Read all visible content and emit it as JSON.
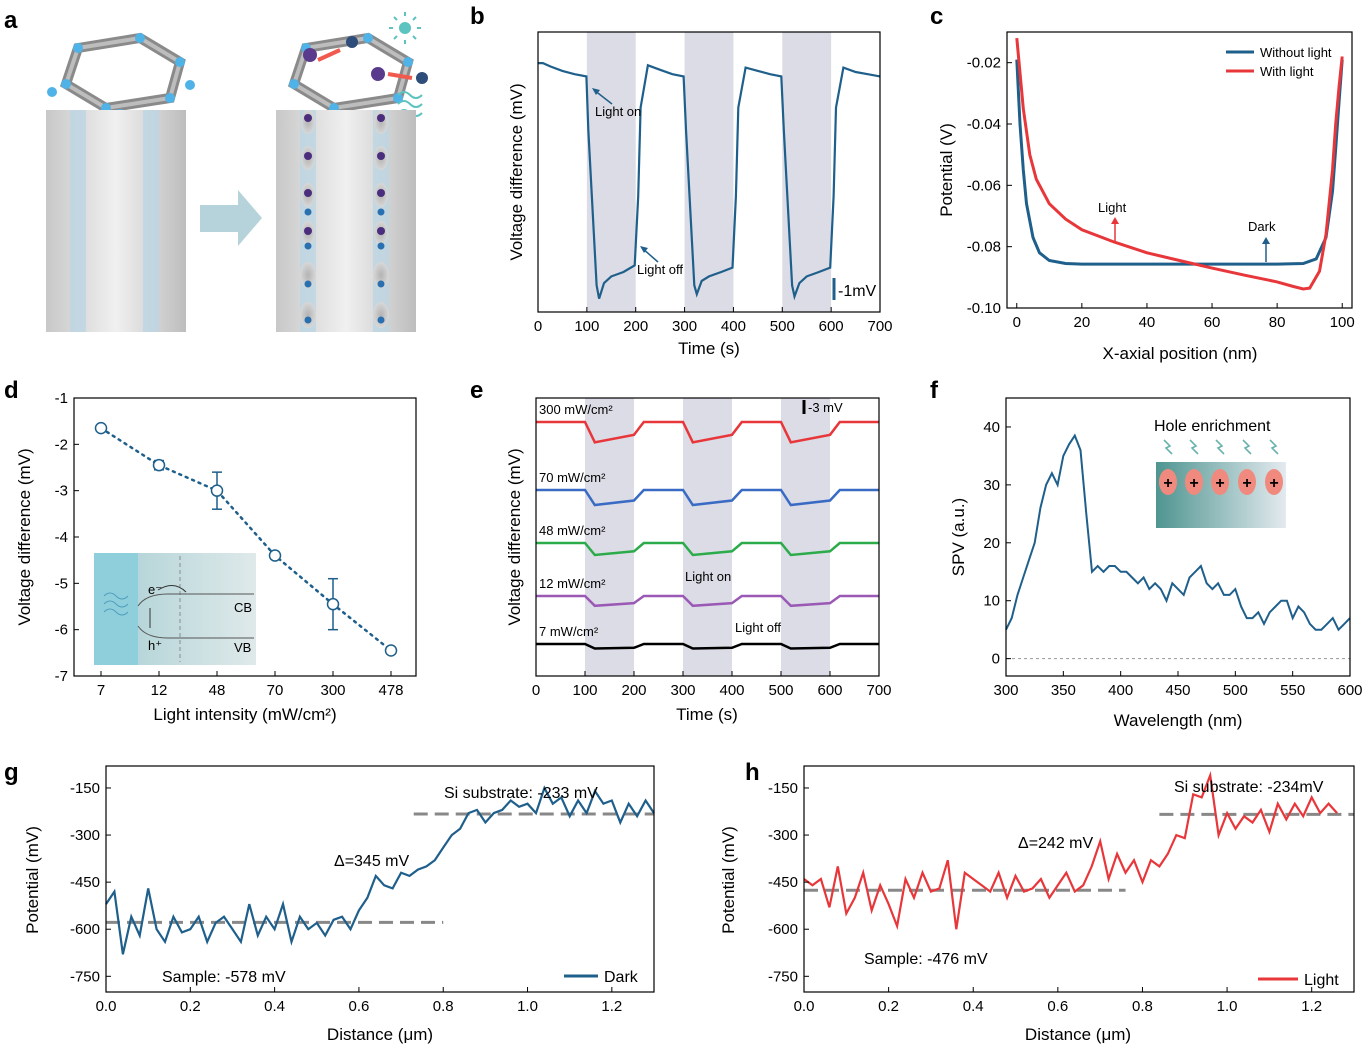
{
  "colors": {
    "blue": "#1f5f8b",
    "red": "#e8373a",
    "green": "#2bab4a",
    "purple": "#9b59b6",
    "black": "#000000",
    "shade": "#dcdce6",
    "gray": "#888888"
  },
  "chart_data": [
    {
      "id": "b",
      "panel": "b",
      "type": "line",
      "xlabel": "Time (s)",
      "ylabel": "Voltage difference (mV)",
      "xlim": [
        0,
        700
      ],
      "xticks": [
        0,
        100,
        200,
        300,
        400,
        500,
        600,
        700
      ],
      "ylim": [
        -11.2,
        1.4
      ],
      "scale_bar": "-1mV",
      "light_on_intervals": [
        [
          100,
          200
        ],
        [
          300,
          400
        ],
        [
          500,
          600
        ]
      ],
      "annotations": [
        "Light on",
        "Light off"
      ],
      "series": [
        {
          "color": "#1f5f8b",
          "x": [
            0,
            10,
            25,
            50,
            75,
            99,
            103,
            120,
            125,
            135,
            150,
            175,
            198,
            205,
            210,
            225,
            250,
            275,
            298,
            303,
            320,
            325,
            335,
            350,
            375,
            398,
            405,
            410,
            425,
            450,
            475,
            498,
            503,
            520,
            525,
            535,
            550,
            575,
            598,
            605,
            610,
            625,
            650,
            675,
            700
          ],
          "y": [
            0,
            0,
            -0.15,
            -0.35,
            -0.5,
            -0.6,
            -3,
            -10,
            -10.6,
            -9.9,
            -9.6,
            -9.4,
            -9.1,
            -6,
            -2,
            -0.1,
            -0.3,
            -0.5,
            -0.6,
            -3,
            -10,
            -10.4,
            -9.8,
            -9.6,
            -9.4,
            -9.2,
            -6,
            -2,
            -0.2,
            -0.35,
            -0.5,
            -0.6,
            -3,
            -10,
            -10.5,
            -9.9,
            -9.6,
            -9.4,
            -9.2,
            -6,
            -2,
            -0.2,
            -0.4,
            -0.5,
            -0.6
          ]
        }
      ]
    },
    {
      "id": "c",
      "panel": "c",
      "type": "line",
      "xlabel": "X-axial position (nm)",
      "ylabel": "Potential (V)",
      "xlim": [
        -3,
        103
      ],
      "xticks": [
        0,
        20,
        40,
        60,
        80,
        100
      ],
      "ylim": [
        -0.1,
        -0.01
      ],
      "yticks": [
        -0.1,
        -0.08,
        -0.06,
        -0.04,
        -0.02
      ],
      "legend": "top-right",
      "annotations": [
        "Light",
        "Dark"
      ],
      "series": [
        {
          "name": "Without light",
          "color": "#1f5f8b",
          "x": [
            0,
            1,
            2,
            3,
            5,
            7,
            10,
            15,
            20,
            40,
            60,
            80,
            88,
            92,
            95,
            97,
            98,
            99,
            100
          ],
          "y": [
            -0.019,
            -0.04,
            -0.055,
            -0.066,
            -0.077,
            -0.082,
            -0.0845,
            -0.0855,
            -0.0857,
            -0.0857,
            -0.0857,
            -0.0857,
            -0.0855,
            -0.084,
            -0.077,
            -0.062,
            -0.048,
            -0.033,
            -0.019
          ]
        },
        {
          "name": "With light",
          "color": "#e8373a",
          "x": [
            0,
            2,
            4,
            6,
            10,
            15,
            20,
            30,
            40,
            50,
            60,
            70,
            80,
            85,
            88,
            90,
            93,
            95,
            97,
            98,
            99,
            100
          ],
          "y": [
            -0.012,
            -0.035,
            -0.05,
            -0.058,
            -0.066,
            -0.071,
            -0.0745,
            -0.0785,
            -0.082,
            -0.0845,
            -0.087,
            -0.0893,
            -0.0915,
            -0.093,
            -0.0938,
            -0.0935,
            -0.088,
            -0.076,
            -0.055,
            -0.04,
            -0.028,
            -0.018
          ]
        }
      ]
    },
    {
      "id": "d",
      "panel": "d",
      "type": "scatter",
      "xlabel": "Light intensity (mW/cm²)",
      "ylabel": "Voltage difference (mV)",
      "categories": [
        "7",
        "12",
        "48",
        "70",
        "300",
        "478"
      ],
      "values": [
        -1.65,
        -2.45,
        -3.0,
        -4.4,
        -5.45,
        -6.45
      ],
      "errors": [
        0.05,
        0.1,
        0.4,
        0.07,
        0.55,
        0.07
      ],
      "ylim": [
        -7,
        -1
      ],
      "yticks": [
        -7,
        -6,
        -5,
        -4,
        -3,
        -2,
        -1
      ],
      "inset_labels": [
        "e⁻",
        "h⁺",
        "CB",
        "VB"
      ]
    },
    {
      "id": "e",
      "panel": "e",
      "type": "line",
      "xlabel": "Time (s)",
      "ylabel": "Voltage difference (mV)",
      "xlim": [
        0,
        700
      ],
      "xticks": [
        0,
        100,
        200,
        300,
        400,
        500,
        600,
        700
      ],
      "scale_bar": "-3 mV",
      "light_on_intervals": [
        [
          100,
          200
        ],
        [
          300,
          400
        ],
        [
          500,
          600
        ]
      ],
      "annotations": [
        "Light on",
        "Light off"
      ],
      "series": [
        {
          "name": "300 mW/cm²",
          "color": "#e8373a",
          "baseline": 0,
          "drop": 2.7,
          "recover": 1.0
        },
        {
          "name": "70 mW/cm²",
          "color": "#3a6bc4",
          "baseline": 0,
          "drop": 2.0,
          "recover": 0.6
        },
        {
          "name": "48 mW/cm²",
          "color": "#2bab4a",
          "baseline": 0,
          "drop": 1.6,
          "recover": 0.5
        },
        {
          "name": "12 mW/cm²",
          "color": "#9b59b6",
          "baseline": 0,
          "drop": 1.3,
          "recover": 0.35
        },
        {
          "name": "7 mW/cm²",
          "color": "#000000",
          "baseline": 0,
          "drop": 0.6,
          "recover": 0.1
        }
      ]
    },
    {
      "id": "f",
      "panel": "f",
      "type": "line",
      "xlabel": "Wavelength (nm)",
      "ylabel": "SPV (a.u.)",
      "xlim": [
        300,
        600
      ],
      "xticks": [
        300,
        350,
        400,
        450,
        500,
        550,
        600
      ],
      "ylim": [
        -3,
        45
      ],
      "yticks": [
        0,
        10,
        20,
        30,
        40
      ],
      "inset_title": "Hole enrichment",
      "series": [
        {
          "color": "#1f5f8b",
          "x": [
            300,
            305,
            310,
            315,
            320,
            325,
            330,
            335,
            340,
            345,
            350,
            355,
            360,
            365,
            370,
            375,
            380,
            385,
            390,
            395,
            400,
            405,
            410,
            415,
            420,
            425,
            430,
            435,
            440,
            445,
            450,
            455,
            460,
            465,
            470,
            475,
            480,
            485,
            490,
            495,
            500,
            505,
            510,
            515,
            520,
            525,
            530,
            535,
            540,
            545,
            550,
            555,
            560,
            565,
            570,
            575,
            580,
            585,
            590,
            595,
            600
          ],
          "y": [
            5,
            7,
            11,
            14,
            17,
            20,
            26,
            30,
            32,
            30,
            35,
            37,
            38.5,
            36,
            25,
            15,
            16,
            15,
            16,
            16,
            15,
            15,
            14,
            13,
            14,
            12,
            13,
            12,
            10,
            13,
            12,
            11,
            14,
            15,
            16,
            13,
            12,
            13,
            11,
            11,
            12,
            9,
            7,
            7,
            8,
            6,
            8,
            9,
            10,
            10,
            7,
            9,
            8,
            6,
            5,
            5,
            6,
            7,
            5,
            6,
            7
          ]
        }
      ]
    },
    {
      "id": "g",
      "panel": "g",
      "type": "line",
      "xlabel": "Distance (μm)",
      "ylabel": "Potential (mV)",
      "xlim": [
        0,
        1.3
      ],
      "xticks": [
        0.0,
        0.2,
        0.4,
        0.6,
        0.8,
        1.0,
        1.2
      ],
      "ylim": [
        -800,
        -80
      ],
      "yticks": [
        -750,
        -600,
        -450,
        -300,
        -150
      ],
      "legend": "bottom-right",
      "levels": [
        -578,
        -233
      ],
      "annotations": [
        "Si substrate: -233 mV",
        "Δ=345 mV",
        "Sample: -578 mV"
      ],
      "series": [
        {
          "name": "Dark",
          "color": "#1f5f8b",
          "x": [
            0.0,
            0.02,
            0.04,
            0.06,
            0.08,
            0.1,
            0.12,
            0.14,
            0.16,
            0.18,
            0.2,
            0.22,
            0.24,
            0.26,
            0.28,
            0.3,
            0.32,
            0.34,
            0.36,
            0.38,
            0.4,
            0.42,
            0.44,
            0.46,
            0.48,
            0.5,
            0.52,
            0.54,
            0.56,
            0.58,
            0.6,
            0.62,
            0.64,
            0.66,
            0.68,
            0.7,
            0.72,
            0.74,
            0.76,
            0.78,
            0.8,
            0.82,
            0.84,
            0.86,
            0.88,
            0.9,
            0.92,
            0.94,
            0.96,
            0.98,
            1.0,
            1.02,
            1.04,
            1.06,
            1.08,
            1.1,
            1.12,
            1.14,
            1.16,
            1.18,
            1.2,
            1.22,
            1.24,
            1.26,
            1.28,
            1.3
          ],
          "y": [
            -520,
            -480,
            -680,
            -560,
            -620,
            -470,
            -600,
            -640,
            -560,
            -610,
            -600,
            -560,
            -640,
            -580,
            -560,
            -600,
            -640,
            -520,
            -620,
            -560,
            -600,
            -520,
            -640,
            -560,
            -600,
            -580,
            -620,
            -570,
            -560,
            -600,
            -540,
            -500,
            -430,
            -460,
            -470,
            -420,
            -430,
            -410,
            -400,
            -380,
            -340,
            -300,
            -280,
            -230,
            -220,
            -260,
            -230,
            -220,
            -190,
            -210,
            -200,
            -230,
            -150,
            -200,
            -180,
            -240,
            -190,
            -230,
            -160,
            -200,
            -190,
            -260,
            -200,
            -240,
            -190,
            -230
          ]
        }
      ]
    },
    {
      "id": "h",
      "panel": "h",
      "type": "line",
      "xlabel": "Distance (μm)",
      "ylabel": "Potential (mV)",
      "xlim": [
        0,
        1.3
      ],
      "xticks": [
        0.0,
        0.2,
        0.4,
        0.6,
        0.8,
        1.0,
        1.2
      ],
      "ylim": [
        -800,
        -80
      ],
      "yticks": [
        -750,
        -600,
        -450,
        -300,
        -150
      ],
      "legend": "bottom-right",
      "levels": [
        -476,
        -234
      ],
      "annotations": [
        "Si substrate:  -234mV",
        "Δ=242 mV",
        "Sample: -476 mV"
      ],
      "series": [
        {
          "name": "Light",
          "color": "#e8373a",
          "x": [
            0.0,
            0.02,
            0.04,
            0.06,
            0.08,
            0.1,
            0.12,
            0.14,
            0.16,
            0.18,
            0.2,
            0.22,
            0.24,
            0.26,
            0.28,
            0.3,
            0.32,
            0.34,
            0.36,
            0.38,
            0.4,
            0.42,
            0.44,
            0.46,
            0.48,
            0.5,
            0.52,
            0.54,
            0.56,
            0.58,
            0.6,
            0.62,
            0.64,
            0.66,
            0.68,
            0.7,
            0.72,
            0.74,
            0.76,
            0.78,
            0.8,
            0.82,
            0.84,
            0.86,
            0.88,
            0.9,
            0.92,
            0.94,
            0.96,
            0.98,
            1.0,
            1.02,
            1.04,
            1.06,
            1.08,
            1.1,
            1.12,
            1.14,
            1.16,
            1.18,
            1.2,
            1.22,
            1.24,
            1.26
          ],
          "y": [
            -440,
            -460,
            -440,
            -530,
            -400,
            -550,
            -500,
            -420,
            -540,
            -460,
            -520,
            -590,
            -440,
            -500,
            -420,
            -480,
            -470,
            -380,
            -600,
            -420,
            -440,
            -460,
            -480,
            -420,
            -500,
            -430,
            -480,
            -470,
            -440,
            -500,
            -460,
            -420,
            -480,
            -460,
            -400,
            -320,
            -440,
            -360,
            -420,
            -380,
            -450,
            -380,
            -400,
            -360,
            -300,
            -310,
            -170,
            -180,
            -110,
            -300,
            -230,
            -280,
            -240,
            -260,
            -220,
            -290,
            -200,
            -250,
            -200,
            -240,
            -180,
            -230,
            -200,
            -230
          ]
        }
      ]
    }
  ],
  "panel_a": {
    "label": "a"
  }
}
